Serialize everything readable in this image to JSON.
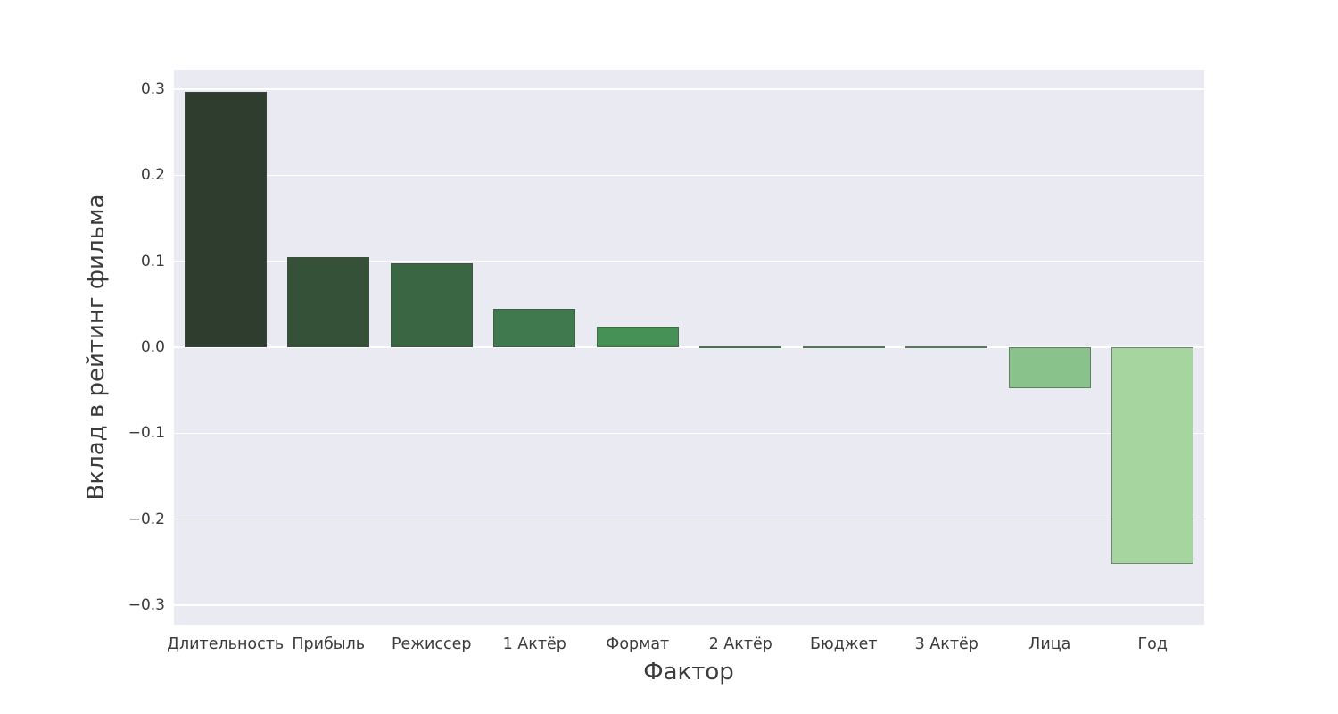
{
  "chart_data": {
    "type": "bar",
    "title": "",
    "xlabel": "Фактор",
    "ylabel": "Вклад в рейтинг фильма",
    "categories": [
      "Длительность",
      "Прибыль",
      "Режиссер",
      "1 Актёр",
      "Формат",
      "2 Актёр",
      "Бюджет",
      "3 Актёр",
      "Лица",
      "Год"
    ],
    "values": [
      0.297,
      0.105,
      0.098,
      0.045,
      0.024,
      0.0015,
      0.0012,
      0.001,
      -0.048,
      -0.252
    ],
    "bar_colors": [
      "#2f3d2f",
      "#355239",
      "#3a6644",
      "#40794d",
      "#459156",
      "#57a263",
      "#68ad70",
      "#79b87e",
      "#8ac28c",
      "#a7d5a0"
    ],
    "bar_edge_color": "rgba(70,70,70,0.55)",
    "plot_background": "#eaeaf2",
    "grid": "horizontal-white",
    "legend": "none",
    "ylim": [
      -0.3228,
      0.3228
    ],
    "yticks": [
      0.3,
      0.2,
      0.1,
      0.0,
      -0.1,
      -0.2,
      -0.3
    ],
    "ytick_labels": [
      "0.3",
      "0.2",
      "0.1",
      "0.0",
      "−0.1",
      "−0.2",
      "−0.3"
    ]
  }
}
